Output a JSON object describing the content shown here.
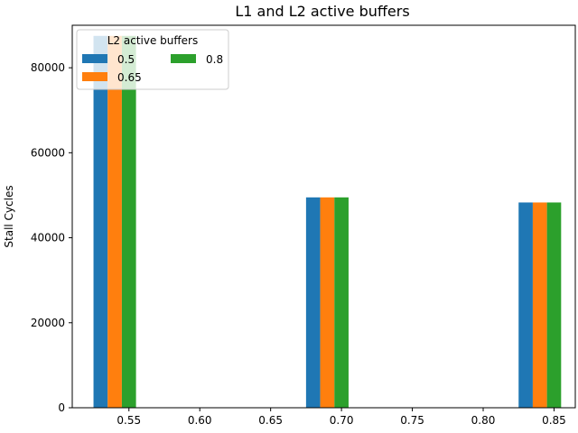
{
  "chart_data": {
    "type": "bar",
    "title": "L1 and L2 active buffers",
    "xlabel": "",
    "ylabel": "Stall Cycles",
    "x": [
      0.54,
      0.69,
      0.84
    ],
    "xlim": [
      0.51,
      0.865
    ],
    "ylim": [
      0,
      90000
    ],
    "xticks": [
      "0.55",
      "0.60",
      "0.65",
      "0.70",
      "0.75",
      "0.80",
      "0.85"
    ],
    "yticks": [
      "0",
      "20000",
      "40000",
      "60000",
      "80000"
    ],
    "grid": false,
    "legend": {
      "title": "L2 active buffers",
      "placement": "top-left",
      "columns": 2
    },
    "series": [
      {
        "name": "0.5",
        "color": "#1f77b4",
        "values": [
          87500,
          49500,
          48300
        ]
      },
      {
        "name": "0.65",
        "color": "#ff7f0e",
        "values": [
          87500,
          49500,
          48300
        ]
      },
      {
        "name": "0.8",
        "color": "#2ca02c",
        "values": [
          87500,
          49500,
          48300
        ]
      }
    ]
  }
}
